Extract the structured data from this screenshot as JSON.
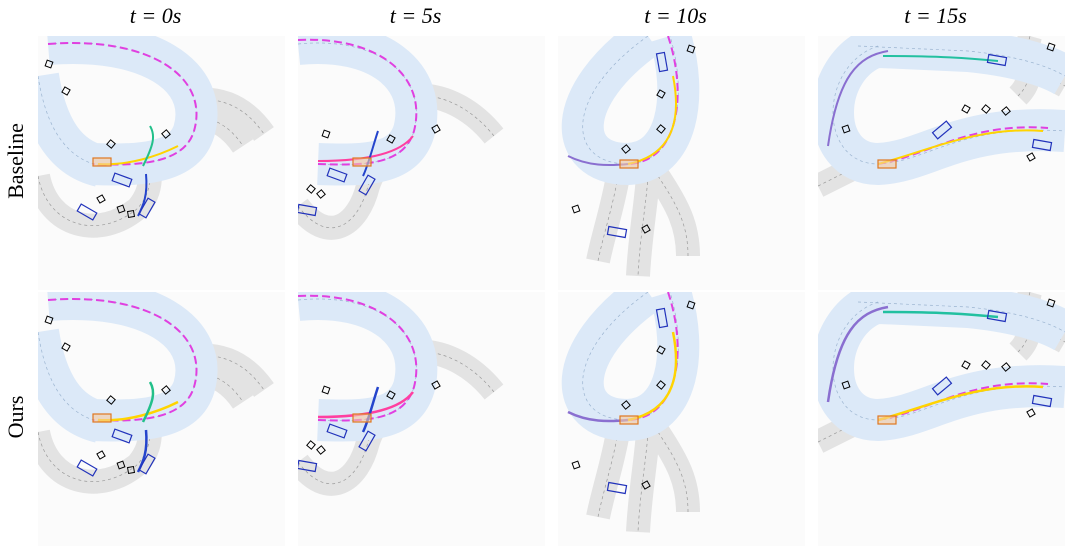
{
  "figure": {
    "columns": [
      "t = 0s",
      "t = 5s",
      "t = 10s",
      "t = 15s"
    ],
    "rows": [
      "Baseline",
      "Ours"
    ]
  }
}
